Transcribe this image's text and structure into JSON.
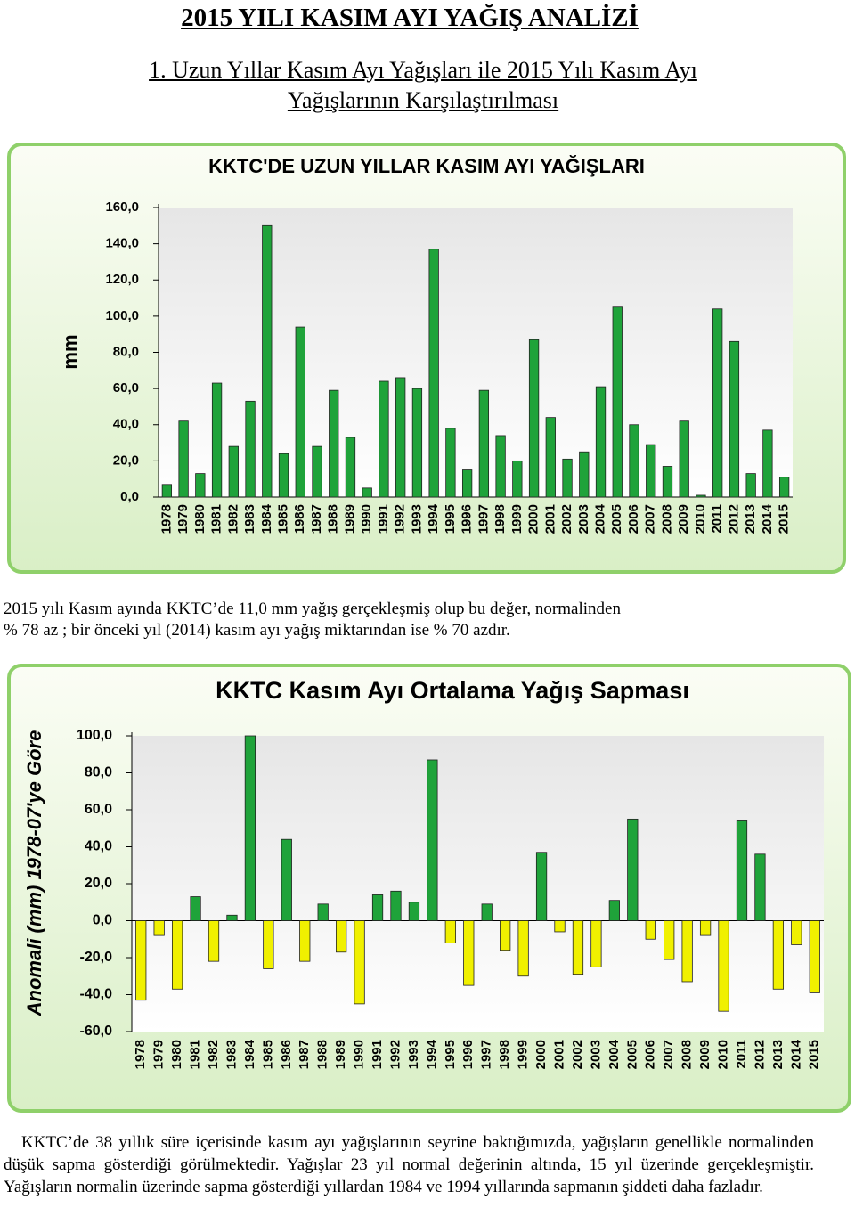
{
  "title": "2015  YILI KASIM AYI  YAĞIŞ  ANALİZİ",
  "heading": "1.  Uzun Yıllar Kasım Ayı  Yağışları ile 2015 Yılı Kasım Ayı Yağışlarının Karşılaştırılması",
  "paragraphs": [
    "2015 yılı Kasım ayında KKTC’de 11,0 mm yağış gerçekleşmiş olup bu değer,  normalinden % 78 az ; bir önceki yıl (2014) kasım ayı yağış miktarından  ise % 70 azdır.",
    "KKTC’de 38 yıllık süre içerisinde kasım ayı yağışlarının seyrine baktığımızda, yağışların genellikle normalinden düşük sapma gösterdiği görülmektedir. Yağışlar 23 yıl normal değerinin altında, 15 yıl üzerinde gerçekleşmiştir. Yağışların normalin üzerinde sapma gösterdiği yıllardan 1984 ve 1994 yıllarında sapmanın şiddeti daha fazladır."
  ],
  "chart_data": [
    {
      "type": "bar",
      "title": "KKTC'DE UZUN YILLAR KASIM AYI YAĞIŞLARI",
      "y_label": "mm",
      "categories": [
        "1978",
        "1979",
        "1980",
        "1981",
        "1982",
        "1983",
        "1984",
        "1985",
        "1986",
        "1987",
        "1988",
        "1989",
        "1990",
        "1991",
        "1992",
        "1993",
        "1994",
        "1995",
        "1996",
        "1997",
        "1998",
        "1999",
        "2000",
        "2001",
        "2002",
        "2003",
        "2004",
        "2005",
        "2006",
        "2007",
        "2008",
        "2009",
        "2010",
        "2011",
        "2012",
        "2013",
        "2014",
        "2015"
      ],
      "values": [
        7,
        42,
        13,
        63,
        28,
        53,
        150,
        24,
        94,
        28,
        59,
        33,
        5,
        64,
        66,
        60,
        137,
        38,
        15,
        59,
        34,
        20,
        87,
        44,
        21,
        25,
        61,
        105,
        40,
        29,
        17,
        42,
        1,
        104,
        86,
        13,
        37,
        11
      ],
      "color": "#1fa33a",
      "ylim": [
        0,
        160
      ],
      "yticks": [
        {
          "value": 0,
          "label": "0,0"
        },
        {
          "value": 20,
          "label": "20,0"
        },
        {
          "value": 40,
          "label": "40,0"
        },
        {
          "value": 60,
          "label": "60,0"
        },
        {
          "value": 80,
          "label": "80,0"
        },
        {
          "value": 100,
          "label": "100,0"
        },
        {
          "value": 120,
          "label": "120,0"
        },
        {
          "value": 140,
          "label": "140,0"
        },
        {
          "value": 160,
          "label": "160,0"
        }
      ]
    },
    {
      "type": "bar",
      "title": "KKTC Kasım Ayı Ortalama Yağış Sapması",
      "y_label": "Anomali (mm) 1978-07'ye Göre",
      "categories": [
        "1978",
        "1979",
        "1980",
        "1981",
        "1982",
        "1983",
        "1984",
        "1985",
        "1986",
        "1987",
        "1988",
        "1989",
        "1990",
        "1991",
        "1992",
        "1993",
        "1994",
        "1995",
        "1996",
        "1997",
        "1998",
        "1999",
        "2000",
        "2001",
        "2002",
        "2003",
        "2004",
        "2005",
        "2006",
        "2007",
        "2008",
        "2009",
        "2010",
        "2011",
        "2012",
        "2013",
        "2014",
        "2015"
      ],
      "values": [
        -43,
        -8,
        -37,
        13,
        -22,
        3,
        100,
        -26,
        44,
        -22,
        9,
        -17,
        -45,
        14,
        16,
        10,
        87,
        -12,
        -35,
        9,
        -16,
        -30,
        37,
        -6,
        -29,
        -25,
        11,
        55,
        -10,
        -21,
        -33,
        -8,
        -49,
        54,
        36,
        -37,
        -13,
        -39
      ],
      "color": "#1fa33a",
      "negative_color": "#f0f000",
      "ylim": [
        -60,
        100
      ],
      "yticks": [
        {
          "value": -60,
          "label": "-60,0"
        },
        {
          "value": -40,
          "label": "-40,0"
        },
        {
          "value": -20,
          "label": "-20,0"
        },
        {
          "value": 0,
          "label": "0,0"
        },
        {
          "value": 20,
          "label": "20,0"
        },
        {
          "value": 40,
          "label": "40,0"
        },
        {
          "value": 60,
          "label": "60,0"
        },
        {
          "value": 80,
          "label": "80,0"
        },
        {
          "value": 100,
          "label": "100,0"
        }
      ]
    }
  ]
}
